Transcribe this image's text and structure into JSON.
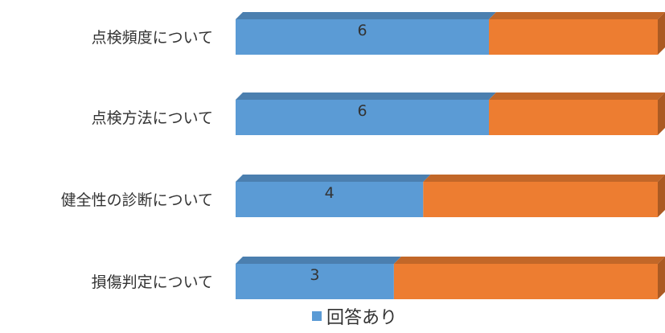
{
  "chart_data": {
    "type": "bar",
    "orientation": "horizontal",
    "stacked": "percent",
    "style": "3d",
    "categories": [
      "点検頻度について",
      "点検方法について",
      "健全性の診断について",
      "損傷判定について"
    ],
    "series": [
      {
        "name": "回答あり",
        "values": [
          6,
          6,
          4,
          3
        ],
        "color": "#5b9bd5",
        "show_labels": true
      },
      {
        "values": [
          4,
          4,
          5,
          5
        ],
        "color": "#ed7d31",
        "show_labels": false
      }
    ],
    "xlabel": "",
    "ylabel": "",
    "grid": false,
    "legend": {
      "position": "bottom",
      "entries": [
        "回答あり"
      ]
    }
  }
}
